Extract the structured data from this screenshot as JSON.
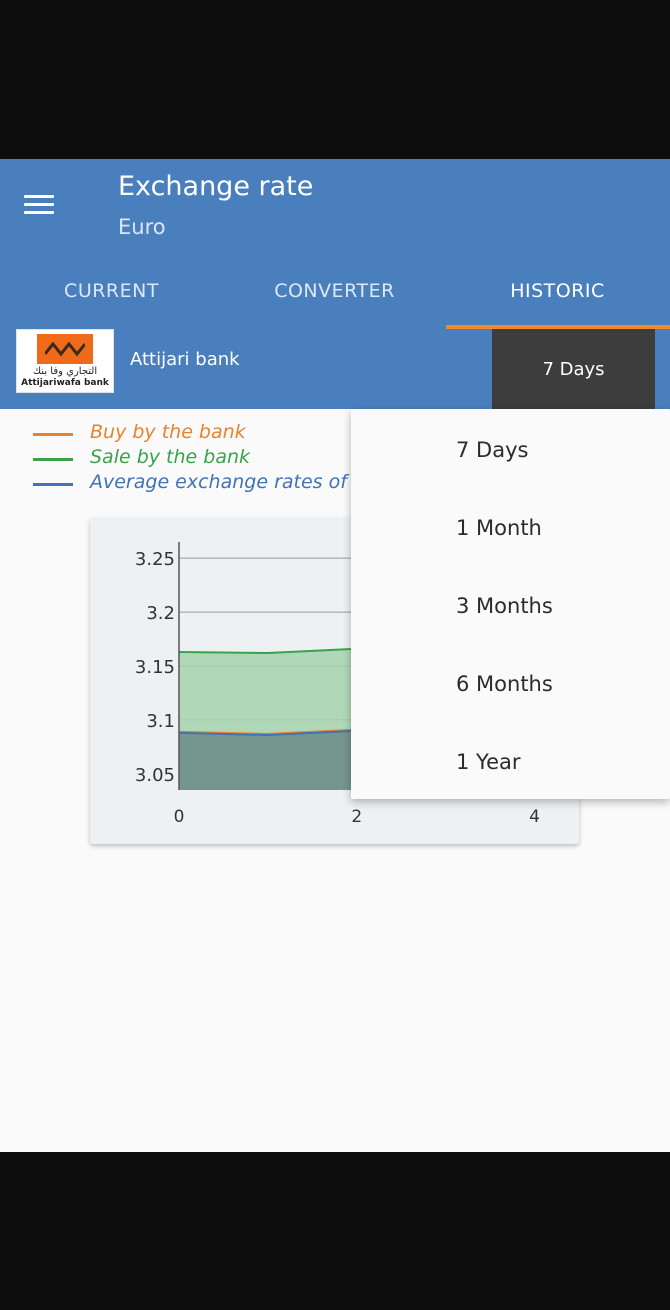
{
  "app": {
    "title": "Exchange rate",
    "subtitle": "Euro"
  },
  "tabs": [
    {
      "label": "CURRENT",
      "active": false
    },
    {
      "label": "CONVERTER",
      "active": false
    },
    {
      "label": "HISTORIC",
      "active": true
    }
  ],
  "bank": {
    "name": "Attijari bank",
    "logo_text_ar": "التجاري وفا بنك",
    "logo_text_lat": "Attijariwafa bank",
    "selected_period": "7 Days"
  },
  "legend": [
    {
      "label": "Buy by the bank",
      "color": "#e8822c"
    },
    {
      "label": "Sale by the bank",
      "color": "#3aa24a"
    },
    {
      "label": "Average exchange rates of",
      "color": "#3f73b5"
    }
  ],
  "period_options": [
    "7 Days",
    "1 Month",
    "3 Months",
    "6 Months",
    "1 Year"
  ],
  "colors": {
    "appbar": "#4a7fbe",
    "tab_indicator": "#f08a2c",
    "select_bg": "#3d3d3d",
    "page_bg": "#fafafa"
  },
  "chart_data": {
    "type": "area",
    "x": [
      0,
      1,
      2,
      2.3
    ],
    "xticks": [
      "0",
      "2",
      "4"
    ],
    "yticks": [
      "3.05",
      "3.1",
      "3.15",
      "3.2",
      "3.25"
    ],
    "ylim": [
      3.035,
      3.265
    ],
    "xlim": [
      0,
      4.5
    ],
    "series": [
      {
        "name": "Sale by the bank",
        "color": "#3aa24a",
        "fill": "#a5d3ad",
        "values": [
          3.163,
          3.162,
          3.166,
          3.165
        ]
      },
      {
        "name": "Buy by the bank",
        "color": "#e8822c",
        "fill": "#b4c790",
        "values": [
          3.089,
          3.087,
          3.091,
          3.091
        ]
      },
      {
        "name": "Average exchange rates of",
        "color": "#3f73b5",
        "fill": "#6a8d8a",
        "values": [
          3.088,
          3.086,
          3.09,
          3.09
        ]
      }
    ],
    "grid": true
  }
}
